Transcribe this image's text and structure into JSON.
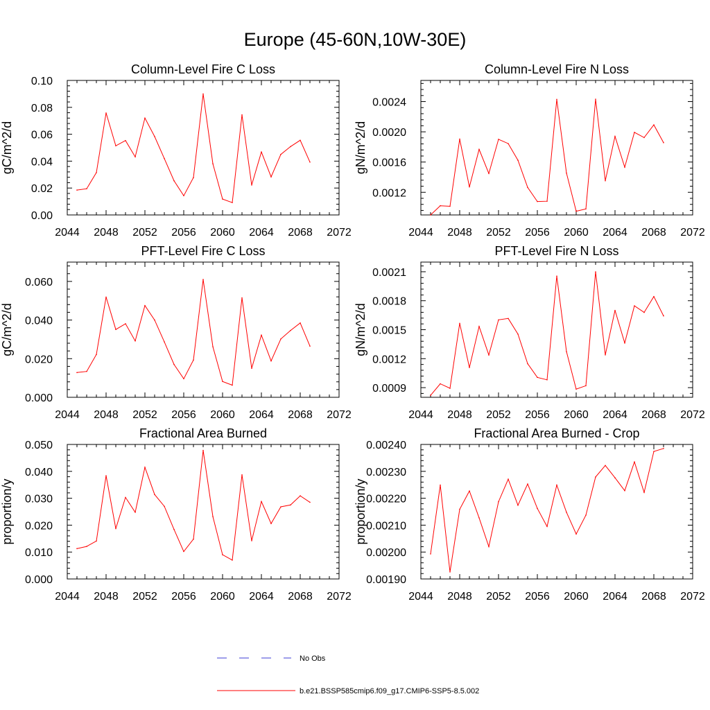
{
  "figure": {
    "title": "Europe (45-60N,10W-30E)"
  },
  "legend": {
    "items": [
      {
        "label": "No Obs",
        "color": "#3b3bd6",
        "style": "dashed"
      },
      {
        "label": "b.e21.BSSP585cmip6.f09_g17.CMIP6-SSP5-8.5.002",
        "color": "#ff0000",
        "style": "solid"
      }
    ]
  },
  "chart_data": [
    {
      "type": "line",
      "title": "Column-Level Fire C Loss",
      "ylabel": "gC/m^2/d",
      "xlim": [
        2044,
        2072
      ],
      "ylim": [
        0,
        0.1
      ],
      "xticks": [
        2044,
        2048,
        2052,
        2056,
        2060,
        2064,
        2068,
        2072
      ],
      "yticks": [
        "0.00",
        "0.02",
        "0.04",
        "0.06",
        "0.08",
        "0.10"
      ],
      "grid": false,
      "series": [
        {
          "name": "b.e21.BSSP585cmip6.f09_g17.CMIP6-SSP5-8.5.002",
          "color": "#ff0000",
          "x": [
            2045,
            2046,
            2047,
            2048,
            2049,
            2050,
            2051,
            2052,
            2053,
            2054,
            2055,
            2056,
            2057,
            2058,
            2059,
            2060,
            2061,
            2062,
            2063,
            2064,
            2065,
            2066,
            2067,
            2068,
            2069
          ],
          "values": [
            0.0185,
            0.0195,
            0.0315,
            0.0758,
            0.0514,
            0.0553,
            0.0432,
            0.072,
            0.0583,
            0.0419,
            0.0254,
            0.0143,
            0.0278,
            0.09,
            0.0381,
            0.0118,
            0.0092,
            0.0744,
            0.0222,
            0.0468,
            0.0283,
            0.045,
            0.0508,
            0.0555,
            0.0393
          ]
        }
      ]
    },
    {
      "type": "line",
      "title": "Column-Level Fire N Loss",
      "ylabel": "gN/m^2/d",
      "xlim": [
        2044,
        2072
      ],
      "ylim": [
        0.0009,
        0.00268
      ],
      "xticks": [
        2044,
        2048,
        2052,
        2056,
        2060,
        2064,
        2068,
        2072
      ],
      "yticks": [
        "0.0012",
        "0.0016",
        "0.0020",
        "0.0024"
      ],
      "grid": false,
      "series": [
        {
          "name": "b.e21.BSSP585cmip6.f09_g17.CMIP6-SSP5-8.5.002",
          "color": "#ff0000",
          "x": [
            2045,
            2046,
            2047,
            2048,
            2049,
            2050,
            2051,
            2052,
            2053,
            2054,
            2055,
            2056,
            2057,
            2058,
            2059,
            2060,
            2061,
            2062,
            2063,
            2064,
            2065,
            2066,
            2067,
            2068,
            2069
          ],
          "values": [
            0.0009,
            0.001022,
            0.001015,
            0.001904,
            0.001271,
            0.001768,
            0.001449,
            0.001901,
            0.001844,
            0.001624,
            0.001264,
            0.001078,
            0.001082,
            0.002429,
            0.001454,
            0.00095,
            0.00098,
            0.002432,
            0.001352,
            0.00194,
            0.001532,
            0.001993,
            0.001924,
            0.002092,
            0.001856
          ]
        }
      ]
    },
    {
      "type": "line",
      "title": "PFT-Level Fire C Loss",
      "ylabel": "gC/m^2/d",
      "xlim": [
        2044,
        2072
      ],
      "ylim": [
        0,
        0.07
      ],
      "xticks": [
        2044,
        2048,
        2052,
        2056,
        2060,
        2064,
        2068,
        2072
      ],
      "yticks": [
        "0.000",
        "0.020",
        "0.040",
        "0.060"
      ],
      "grid": false,
      "series": [
        {
          "name": "b.e21.BSSP585cmip6.f09_g17.CMIP6-SSP5-8.5.002",
          "color": "#ff0000",
          "x": [
            2045,
            2046,
            2047,
            2048,
            2049,
            2050,
            2051,
            2052,
            2053,
            2054,
            2055,
            2056,
            2057,
            2058,
            2059,
            2060,
            2061,
            2062,
            2063,
            2064,
            2065,
            2066,
            2067,
            2068,
            2069
          ],
          "values": [
            0.0128,
            0.0134,
            0.0222,
            0.0519,
            0.0351,
            0.0381,
            0.0292,
            0.0475,
            0.04,
            0.0287,
            0.017,
            0.0096,
            0.0193,
            0.061,
            0.0262,
            0.0082,
            0.0063,
            0.0515,
            0.015,
            0.0322,
            0.0188,
            0.0302,
            0.0346,
            0.0385,
            0.0265
          ]
        }
      ]
    },
    {
      "type": "line",
      "title": "PFT-Level Fire N Loss",
      "ylabel": "gN/m^2/d",
      "xlim": [
        2044,
        2072
      ],
      "ylim": [
        0.0008,
        0.0022
      ],
      "xticks": [
        2044,
        2048,
        2052,
        2056,
        2060,
        2064,
        2068,
        2072
      ],
      "yticks": [
        "0.0009",
        "0.0012",
        "0.0015",
        "0.0018",
        "0.0021"
      ],
      "grid": false,
      "series": [
        {
          "name": "b.e21.BSSP585cmip6.f09_g17.CMIP6-SSP5-8.5.002",
          "color": "#ff0000",
          "x": [
            2045,
            2046,
            2047,
            2048,
            2049,
            2050,
            2051,
            2052,
            2053,
            2054,
            2055,
            2056,
            2057,
            2058,
            2059,
            2060,
            2061,
            2062,
            2063,
            2064,
            2065,
            2066,
            2067,
            2068,
            2069
          ],
          "values": [
            0.00082,
            0.00094,
            0.000893,
            0.001566,
            0.001108,
            0.001534,
            0.001238,
            0.001602,
            0.001616,
            0.001454,
            0.001148,
            0.001006,
            0.000981,
            0.002055,
            0.001273,
            0.000885,
            0.00092,
            0.002099,
            0.001239,
            0.0017,
            0.001363,
            0.001747,
            0.001679,
            0.001843,
            0.001643
          ]
        }
      ]
    },
    {
      "type": "line",
      "title": "Fractional Area Burned",
      "ylabel": "proportion/y",
      "xlim": [
        2044,
        2072
      ],
      "ylim": [
        0,
        0.05
      ],
      "xticks": [
        2044,
        2048,
        2052,
        2056,
        2060,
        2064,
        2068,
        2072
      ],
      "yticks": [
        "0.000",
        "0.010",
        "0.020",
        "0.030",
        "0.040",
        "0.050"
      ],
      "grid": false,
      "series": [
        {
          "name": "b.e21.BSSP585cmip6.f09_g17.CMIP6-SSP5-8.5.002",
          "color": "#ff0000",
          "x": [
            2045,
            2046,
            2047,
            2048,
            2049,
            2050,
            2051,
            2052,
            2053,
            2054,
            2055,
            2056,
            2057,
            2058,
            2059,
            2060,
            2061,
            2062,
            2063,
            2064,
            2065,
            2066,
            2067,
            2068,
            2069
          ],
          "values": [
            0.0113,
            0.0121,
            0.0141,
            0.0384,
            0.0187,
            0.0303,
            0.0248,
            0.0415,
            0.0314,
            0.027,
            0.0184,
            0.0102,
            0.0148,
            0.0478,
            0.0232,
            0.009,
            0.007,
            0.0387,
            0.0142,
            0.0288,
            0.0206,
            0.0268,
            0.0275,
            0.0309,
            0.0285
          ]
        }
      ]
    },
    {
      "type": "line",
      "title": "Fractional Area Burned - Crop",
      "ylabel": "proportion/y",
      "xlim": [
        2044,
        2072
      ],
      "ylim": [
        0.0019,
        0.0024
      ],
      "xticks": [
        2044,
        2048,
        2052,
        2056,
        2060,
        2064,
        2068,
        2072
      ],
      "yticks": [
        "0.00190",
        "0.00200",
        "0.00210",
        "0.00220",
        "0.00230",
        "0.00240"
      ],
      "grid": false,
      "series": [
        {
          "name": "b.e21.BSSP585cmip6.f09_g17.CMIP6-SSP5-8.5.002",
          "color": "#ff0000",
          "x": [
            2045,
            2046,
            2047,
            2048,
            2049,
            2050,
            2051,
            2052,
            2053,
            2054,
            2055,
            2056,
            2057,
            2058,
            2059,
            2060,
            2061,
            2062,
            2063,
            2064,
            2065,
            2066,
            2067,
            2068,
            2069
          ],
          "values": [
            0.001993,
            0.002249,
            0.001926,
            0.002159,
            0.002227,
            0.002127,
            0.00202,
            0.002187,
            0.002271,
            0.002174,
            0.002253,
            0.002162,
            0.002095,
            0.002249,
            0.002148,
            0.002067,
            0.002137,
            0.002279,
            0.002322,
            0.002276,
            0.002228,
            0.002335,
            0.002222,
            0.002374,
            0.002385
          ]
        }
      ]
    }
  ]
}
